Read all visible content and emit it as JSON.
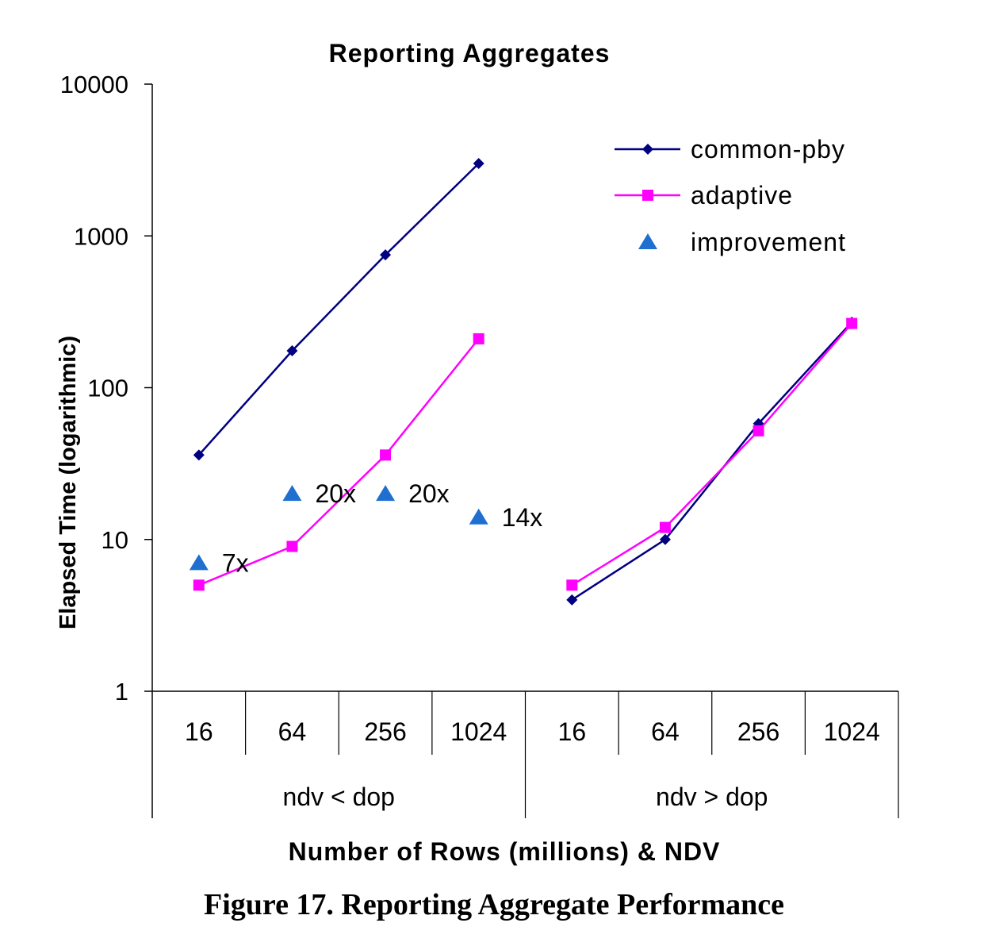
{
  "caption": "Figure 17. Reporting Aggregate Performance",
  "chart_data": {
    "type": "line",
    "title": "Reporting Aggregates",
    "xlabel": "Number of Rows (millions) & NDV",
    "ylabel": "Elapsed Time (logarithmic)",
    "yscale": "log",
    "ylim": [
      1,
      10000
    ],
    "yticks": [
      "1",
      "10",
      "100",
      "1000",
      "10000"
    ],
    "categories": [
      "16",
      "64",
      "256",
      "1024",
      "16",
      "64",
      "256",
      "1024"
    ],
    "groups": [
      {
        "label": "ndv < dop",
        "span": 4
      },
      {
        "label": "ndv > dop",
        "span": 4
      }
    ],
    "legend_position": "top-right",
    "series": [
      {
        "name": "common-pby",
        "color": "#000080",
        "marker": "diamond",
        "segments": [
          {
            "indices": [
              0,
              1,
              2,
              3
            ],
            "values": [
              36,
              175,
              750,
              3000
            ]
          },
          {
            "indices": [
              4,
              5,
              6,
              7
            ],
            "values": [
              4,
              10,
              58,
              270
            ]
          }
        ]
      },
      {
        "name": "adaptive",
        "color": "#ff00ff",
        "marker": "square",
        "segments": [
          {
            "indices": [
              0,
              1,
              2,
              3
            ],
            "values": [
              5,
              9,
              36,
              210
            ]
          },
          {
            "indices": [
              4,
              5,
              6,
              7
            ],
            "values": [
              5,
              12,
              52,
              265
            ]
          }
        ]
      },
      {
        "name": "improvement",
        "color": "#1f6fd0",
        "marker": "triangle",
        "points": [
          {
            "index": 0,
            "value": 7,
            "label": "7x"
          },
          {
            "index": 1,
            "value": 20,
            "label": "20x"
          },
          {
            "index": 2,
            "value": 20,
            "label": "20x"
          },
          {
            "index": 3,
            "value": 14,
            "label": "14x"
          }
        ]
      }
    ]
  }
}
